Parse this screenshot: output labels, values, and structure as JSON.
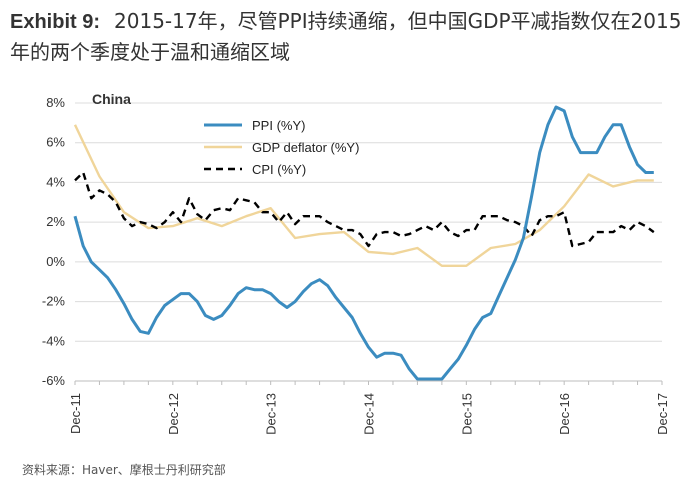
{
  "header": {
    "exhibit": "Exhibit 9:",
    "title": "2015-17年，尽管PPI持续通缩，但中国GDP平减指数仅在2015年的两个季度处于温和通缩区域"
  },
  "footer": {
    "source": "资料来源：Haver、摩根士丹利研究部"
  },
  "chart_data": {
    "type": "line",
    "panel_label": "China",
    "x_tick_labels": [
      "Dec-11",
      "Dec-12",
      "Dec-13",
      "Dec-14",
      "Dec-15",
      "Dec-16",
      "Dec-17"
    ],
    "y_tick_labels": [
      "8%",
      "6%",
      "4%",
      "2%",
      "0%",
      "-2%",
      "-4%",
      "-6%"
    ],
    "ylim": [
      -6,
      8
    ],
    "xlim": [
      0,
      72
    ],
    "legend_position": "top-center",
    "grid": true,
    "colors": {
      "ppi": "#3b8cc0",
      "gdp": "#f0d59a",
      "cpi": "#000000"
    },
    "series": [
      {
        "name": "PPI (%Y)",
        "style": "solid",
        "x": [
          0,
          1,
          2,
          3,
          4,
          5,
          6,
          7,
          8,
          9,
          10,
          11,
          12,
          13,
          14,
          15,
          16,
          17,
          18,
          19,
          20,
          21,
          22,
          23,
          24,
          25,
          26,
          27,
          28,
          29,
          30,
          31,
          32,
          33,
          34,
          35,
          36,
          37,
          38,
          39,
          40,
          41,
          42,
          43,
          44,
          45,
          46,
          47,
          48,
          49,
          50,
          51,
          52,
          53,
          54,
          55,
          56,
          57,
          58,
          59,
          60,
          61,
          62,
          63,
          64,
          65,
          66,
          67,
          68,
          69,
          70,
          71
        ],
        "values": [
          2.3,
          0.8,
          0.0,
          -0.4,
          -0.8,
          -1.4,
          -2.1,
          -2.9,
          -3.5,
          -3.6,
          -2.8,
          -2.2,
          -1.9,
          -1.6,
          -1.6,
          -2.0,
          -2.7,
          -2.9,
          -2.7,
          -2.2,
          -1.6,
          -1.3,
          -1.4,
          -1.4,
          -1.6,
          -2.0,
          -2.3,
          -2.0,
          -1.5,
          -1.1,
          -0.9,
          -1.2,
          -1.8,
          -2.3,
          -2.8,
          -3.6,
          -4.3,
          -4.8,
          -4.6,
          -4.6,
          -4.7,
          -5.4,
          -5.9,
          -5.9,
          -5.9,
          -5.9,
          -5.4,
          -4.9,
          -4.2,
          -3.4,
          -2.8,
          -2.6,
          -1.7,
          -0.8,
          0.1,
          1.2,
          3.3,
          5.5,
          6.9,
          7.8,
          7.6,
          6.3,
          5.5,
          5.5,
          5.5,
          6.3,
          6.9,
          6.9,
          5.8,
          4.9,
          4.5,
          4.5
        ]
      },
      {
        "name": "GDP deflator (%Y)",
        "style": "solid",
        "x": [
          0,
          3,
          6,
          9,
          12,
          15,
          18,
          21,
          24,
          27,
          30,
          33,
          36,
          39,
          42,
          45,
          48,
          51,
          54,
          57,
          60,
          63,
          66,
          69,
          71
        ],
        "values": [
          6.9,
          4.3,
          2.5,
          1.7,
          1.8,
          2.2,
          1.8,
          2.3,
          2.7,
          1.2,
          1.4,
          1.5,
          0.5,
          0.4,
          0.7,
          -0.2,
          -0.2,
          0.7,
          0.9,
          1.6,
          2.8,
          4.4,
          3.8,
          4.1,
          4.1
        ]
      },
      {
        "name": "CPI (%Y)",
        "style": "dashed",
        "x": [
          0,
          1,
          2,
          3,
          4,
          5,
          6,
          7,
          8,
          9,
          10,
          11,
          12,
          13,
          14,
          15,
          16,
          17,
          18,
          19,
          20,
          21,
          22,
          23,
          24,
          25,
          26,
          27,
          28,
          29,
          30,
          31,
          32,
          33,
          34,
          35,
          36,
          37,
          38,
          39,
          40,
          41,
          42,
          43,
          44,
          45,
          46,
          47,
          48,
          49,
          50,
          51,
          52,
          53,
          54,
          55,
          56,
          57,
          58,
          59,
          60,
          61,
          62,
          63,
          64,
          65,
          66,
          67,
          68,
          69,
          70,
          71
        ],
        "values": [
          4.1,
          4.5,
          3.2,
          3.6,
          3.4,
          3.0,
          2.2,
          1.8,
          2.0,
          1.9,
          1.7,
          2.0,
          2.5,
          2.0,
          3.2,
          2.4,
          2.1,
          2.6,
          2.7,
          2.6,
          3.2,
          3.1,
          3.0,
          2.5,
          2.5,
          2.0,
          2.5,
          1.9,
          2.3,
          2.3,
          2.3,
          2.0,
          1.8,
          1.6,
          1.6,
          1.4,
          0.8,
          1.4,
          1.5,
          1.5,
          1.3,
          1.4,
          1.6,
          1.8,
          1.6,
          2.0,
          1.5,
          1.3,
          1.6,
          1.6,
          2.3,
          2.3,
          2.3,
          2.1,
          2.0,
          1.8,
          1.3,
          2.1,
          2.3,
          2.3,
          2.5,
          0.8,
          0.9,
          1.0,
          1.5,
          1.5,
          1.5,
          1.8,
          1.6,
          2.0,
          1.8,
          1.5
        ]
      }
    ]
  }
}
